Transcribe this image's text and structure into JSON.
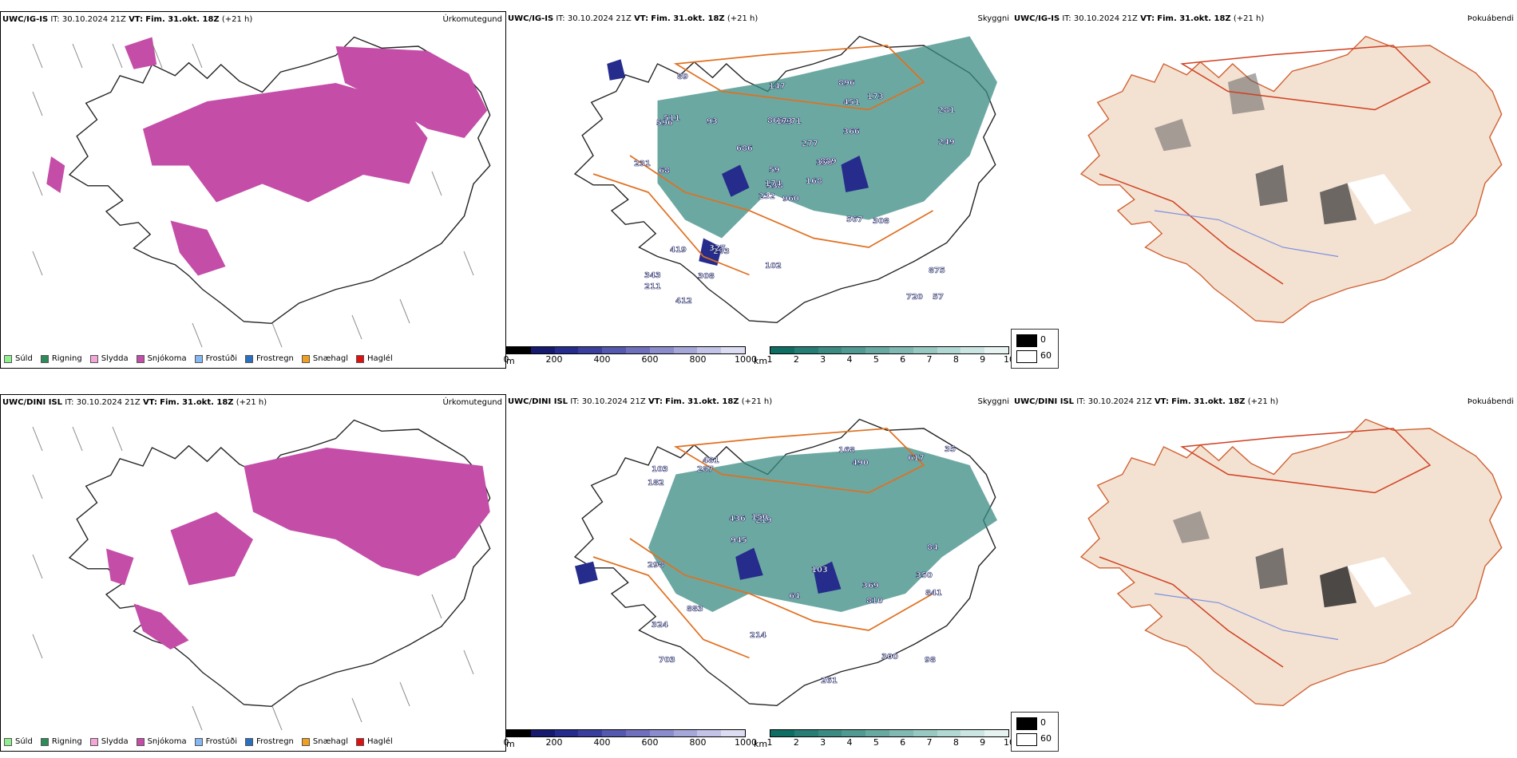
{
  "rows": [
    {
      "model": "UWC/IG-IS",
      "it_label": "IT:",
      "it": "30.10.2024 21Z",
      "vt_label": "VT:",
      "vt": "Fim. 31.okt. 18Z",
      "lead": "(+21 h)",
      "visibility_labels": [
        "960",
        "596",
        "538",
        "343",
        "350",
        "293",
        "896",
        "171",
        "451",
        "168",
        "89",
        "57",
        "68",
        "281",
        "232",
        "366",
        "412",
        "809",
        "277",
        "419",
        "686",
        "211",
        "308",
        "173",
        "889",
        "308",
        "511",
        "147",
        "231",
        "567",
        "249",
        "174",
        "102",
        "59",
        "93",
        "173",
        "327",
        "720",
        "875"
      ],
      "cloud_labels": [
        "369",
        "350",
        "703",
        "481",
        "219",
        "300",
        "324",
        "490",
        "436",
        "261",
        "182",
        "298",
        "103",
        "98",
        "214",
        "84",
        "64",
        "103",
        "150",
        "883",
        "35",
        "617",
        "945",
        "841",
        "168",
        "287",
        "810"
      ]
    },
    {
      "model": "UWC/DINI ISL",
      "it_label": "IT:",
      "it": "30.10.2024 21Z",
      "vt_label": "VT:",
      "vt": "Fim. 31.okt. 18Z",
      "lead": "(+21 h)"
    }
  ],
  "panel_titles": {
    "precip": "Úrkomutegund",
    "visibility": "Skyggni",
    "fog": "Þokuábendi"
  },
  "precip_legend": [
    {
      "label": "Súld",
      "color": "#90ee90"
    },
    {
      "label": "Rigning",
      "color": "#2e8b57"
    },
    {
      "label": "Slydda",
      "color": "#f4a6d7"
    },
    {
      "label": "Snjókoma",
      "color": "#c44da8"
    },
    {
      "label": "Frostúði",
      "color": "#87b7f0"
    },
    {
      "label": "Frostregn",
      "color": "#2a6fc0"
    },
    {
      "label": "Snæhagl",
      "color": "#f0a020"
    },
    {
      "label": "Haglél",
      "color": "#e01010"
    }
  ],
  "cloud_base_scale": {
    "unit": "m",
    "ticks": [
      "0",
      "200",
      "400",
      "600",
      "800",
      "1000"
    ],
    "colors": [
      "#000000",
      "#151a6e",
      "#252c8c",
      "#3a3f9e",
      "#5458ae",
      "#6e70bd",
      "#8a8ccb",
      "#a6a7d9",
      "#c2c3e6",
      "#dcdcf2"
    ]
  },
  "visibility_scale": {
    "unit": "km",
    "ticks": [
      "1",
      "2",
      "3",
      "4",
      "5",
      "6",
      "7",
      "8",
      "9",
      "10"
    ],
    "colors": [
      "#0f6e64",
      "#267d74",
      "#3b8b83",
      "#519a92",
      "#68a9a2",
      "#80b8b2",
      "#98c8c2",
      "#b2d8d3",
      "#cbe6e2",
      "#e6f3f1"
    ]
  },
  "fog_scale": {
    "min": "0",
    "max": "60"
  }
}
